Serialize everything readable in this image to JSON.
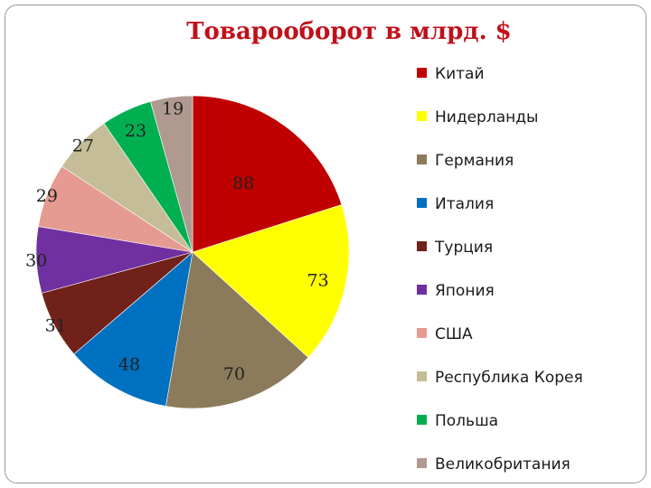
{
  "chart_data": {
    "type": "pie",
    "title": "Товарооборот в млрд. $",
    "legend_position": "right",
    "slices": [
      {
        "name": "Китай",
        "value": 88,
        "color": "#c00000"
      },
      {
        "name": "Нидерланды",
        "value": 73,
        "color": "#ffff00"
      },
      {
        "name": "Германия",
        "value": 70,
        "color": "#8b7b5a"
      },
      {
        "name": "Италия",
        "value": 48,
        "color": "#0070c0"
      },
      {
        "name": "Турция",
        "value": 31,
        "color": "#70211a"
      },
      {
        "name": "Япония",
        "value": 30,
        "color": "#7030a0"
      },
      {
        "name": "США",
        "value": 29,
        "color": "#e59a92"
      },
      {
        "name": "Республика Корея",
        "value": 27,
        "color": "#c4bd97"
      },
      {
        "name": "Польша",
        "value": 23,
        "color": "#00b050"
      },
      {
        "name": "Великобритания",
        "value": 19,
        "color": "#b09a90"
      }
    ]
  }
}
